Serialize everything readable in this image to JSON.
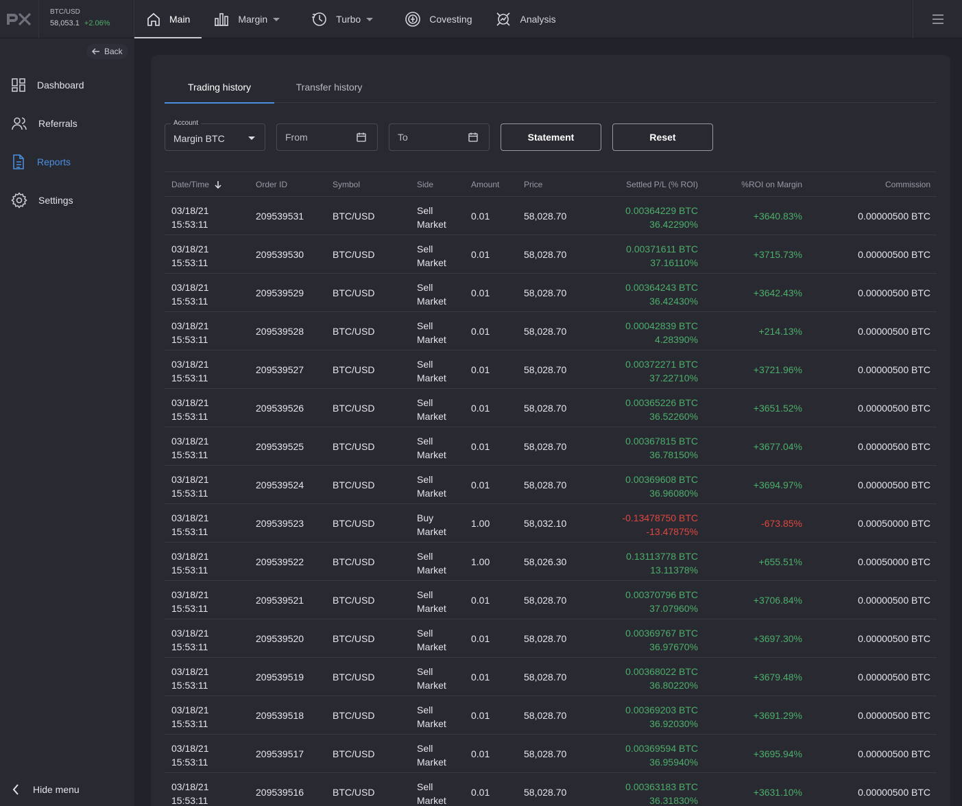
{
  "ticker": {
    "symbol": "BTC/USD",
    "price": "58,053.1",
    "change": "+2.06%"
  },
  "nav": [
    {
      "label": "Main",
      "icon": "home-icon"
    },
    {
      "label": "Margin",
      "icon": "bar-chart-icon"
    },
    {
      "label": "Turbo",
      "icon": "turbo-icon"
    },
    {
      "label": "Covesting",
      "icon": "covesting-icon"
    },
    {
      "label": "Analysis",
      "icon": "analysis-icon"
    }
  ],
  "sidebar": {
    "back": "Back",
    "items": [
      {
        "label": "Dashboard",
        "icon": "dashboard-icon"
      },
      {
        "label": "Referrals",
        "icon": "users-icon"
      },
      {
        "label": "Reports",
        "icon": "document-icon"
      },
      {
        "label": "Settings",
        "icon": "gear-icon"
      }
    ],
    "hide_menu": "Hide menu"
  },
  "tabs": [
    "Trading history",
    "Transfer history"
  ],
  "filters": {
    "account_label": "Account",
    "account_value": "Margin BTC",
    "from_placeholder": "From",
    "to_placeholder": "To",
    "statement": "Statement",
    "reset": "Reset"
  },
  "columns": [
    "Date/Time",
    "Order ID",
    "Symbol",
    "Side",
    "Amount",
    "Price",
    "Settled P/L (% ROI)",
    "%ROI on Margin",
    "Commission"
  ],
  "rows": [
    {
      "date": "03/18/21",
      "time": "15:53:11",
      "order": "209539531",
      "symbol": "BTC/USD",
      "side": "Sell",
      "type": "Market",
      "amount": "0.01",
      "price": "58,028.70",
      "pl": "0.00364229 BTC",
      "pl_pct": "36.42290%",
      "roi": "+3640.83%",
      "commission": "0.00000500 BTC",
      "positive": true
    },
    {
      "date": "03/18/21",
      "time": "15:53:11",
      "order": "209539530",
      "symbol": "BTC/USD",
      "side": "Sell",
      "type": "Market",
      "amount": "0.01",
      "price": "58,028.70",
      "pl": "0.00371611 BTC",
      "pl_pct": "37.16110%",
      "roi": "+3715.73%",
      "commission": "0.00000500 BTC",
      "positive": true
    },
    {
      "date": "03/18/21",
      "time": "15:53:11",
      "order": "209539529",
      "symbol": "BTC/USD",
      "side": "Sell",
      "type": "Market",
      "amount": "0.01",
      "price": "58,028.70",
      "pl": "0.00364243 BTC",
      "pl_pct": "36.42430%",
      "roi": "+3642.43%",
      "commission": "0.00000500 BTC",
      "positive": true
    },
    {
      "date": "03/18/21",
      "time": "15:53:11",
      "order": "209539528",
      "symbol": "BTC/USD",
      "side": "Sell",
      "type": "Market",
      "amount": "0.01",
      "price": "58,028.70",
      "pl": "0.00042839 BTC",
      "pl_pct": "4.28390%",
      "roi": "+214.13%",
      "commission": "0.00000500 BTC",
      "positive": true
    },
    {
      "date": "03/18/21",
      "time": "15:53:11",
      "order": "209539527",
      "symbol": "BTC/USD",
      "side": "Sell",
      "type": "Market",
      "amount": "0.01",
      "price": "58,028.70",
      "pl": "0.00372271 BTC",
      "pl_pct": "37.22710%",
      "roi": "+3721.96%",
      "commission": "0.00000500 BTC",
      "positive": true
    },
    {
      "date": "03/18/21",
      "time": "15:53:11",
      "order": "209539526",
      "symbol": "BTC/USD",
      "side": "Sell",
      "type": "Market",
      "amount": "0.01",
      "price": "58,028.70",
      "pl": "0.00365226 BTC",
      "pl_pct": "36.52260%",
      "roi": "+3651.52%",
      "commission": "0.00000500 BTC",
      "positive": true
    },
    {
      "date": "03/18/21",
      "time": "15:53:11",
      "order": "209539525",
      "symbol": "BTC/USD",
      "side": "Sell",
      "type": "Market",
      "amount": "0.01",
      "price": "58,028.70",
      "pl": "0.00367815 BTC",
      "pl_pct": "36.78150%",
      "roi": "+3677.04%",
      "commission": "0.00000500 BTC",
      "positive": true
    },
    {
      "date": "03/18/21",
      "time": "15:53:11",
      "order": "209539524",
      "symbol": "BTC/USD",
      "side": "Sell",
      "type": "Market",
      "amount": "0.01",
      "price": "58,028.70",
      "pl": "0.00369608 BTC",
      "pl_pct": "36.96080%",
      "roi": "+3694.97%",
      "commission": "0.00000500 BTC",
      "positive": true
    },
    {
      "date": "03/18/21",
      "time": "15:53:11",
      "order": "209539523",
      "symbol": "BTC/USD",
      "side": "Buy",
      "type": "Market",
      "amount": "1.00",
      "price": "58,032.10",
      "pl": "-0.13478750 BTC",
      "pl_pct": "-13.47875%",
      "roi": "-673.85%",
      "commission": "0.00050000 BTC",
      "positive": false
    },
    {
      "date": "03/18/21",
      "time": "15:53:11",
      "order": "209539522",
      "symbol": "BTC/USD",
      "side": "Sell",
      "type": "Market",
      "amount": "1.00",
      "price": "58,026.30",
      "pl": "0.13113778 BTC",
      "pl_pct": "13.11378%",
      "roi": "+655.51%",
      "commission": "0.00050000 BTC",
      "positive": true
    },
    {
      "date": "03/18/21",
      "time": "15:53:11",
      "order": "209539521",
      "symbol": "BTC/USD",
      "side": "Sell",
      "type": "Market",
      "amount": "0.01",
      "price": "58,028.70",
      "pl": "0.00370796 BTC",
      "pl_pct": "37.07960%",
      "roi": "+3706.84%",
      "commission": "0.00000500 BTC",
      "positive": true
    },
    {
      "date": "03/18/21",
      "time": "15:53:11",
      "order": "209539520",
      "symbol": "BTC/USD",
      "side": "Sell",
      "type": "Market",
      "amount": "0.01",
      "price": "58,028.70",
      "pl": "0.00369767 BTC",
      "pl_pct": "36.97670%",
      "roi": "+3697.30%",
      "commission": "0.00000500 BTC",
      "positive": true
    },
    {
      "date": "03/18/21",
      "time": "15:53:11",
      "order": "209539519",
      "symbol": "BTC/USD",
      "side": "Sell",
      "type": "Market",
      "amount": "0.01",
      "price": "58,028.70",
      "pl": "0.00368022 BTC",
      "pl_pct": "36.80220%",
      "roi": "+3679.48%",
      "commission": "0.00000500 BTC",
      "positive": true
    },
    {
      "date": "03/18/21",
      "time": "15:53:11",
      "order": "209539518",
      "symbol": "BTC/USD",
      "side": "Sell",
      "type": "Market",
      "amount": "0.01",
      "price": "58,028.70",
      "pl": "0.00369203 BTC",
      "pl_pct": "36.92030%",
      "roi": "+3691.29%",
      "commission": "0.00000500 BTC",
      "positive": true
    },
    {
      "date": "03/18/21",
      "time": "15:53:11",
      "order": "209539517",
      "symbol": "BTC/USD",
      "side": "Sell",
      "type": "Market",
      "amount": "0.01",
      "price": "58,028.70",
      "pl": "0.00369594 BTC",
      "pl_pct": "36.95940%",
      "roi": "+3695.94%",
      "commission": "0.00000500 BTC",
      "positive": true
    },
    {
      "date": "03/18/21",
      "time": "15:53:11",
      "order": "209539516",
      "symbol": "BTC/USD",
      "side": "Sell",
      "type": "Market",
      "amount": "0.01",
      "price": "58,028.70",
      "pl": "0.00363183 BTC",
      "pl_pct": "36.31830%",
      "roi": "+3631.10%",
      "commission": "0.00000500 BTC",
      "positive": true
    }
  ]
}
